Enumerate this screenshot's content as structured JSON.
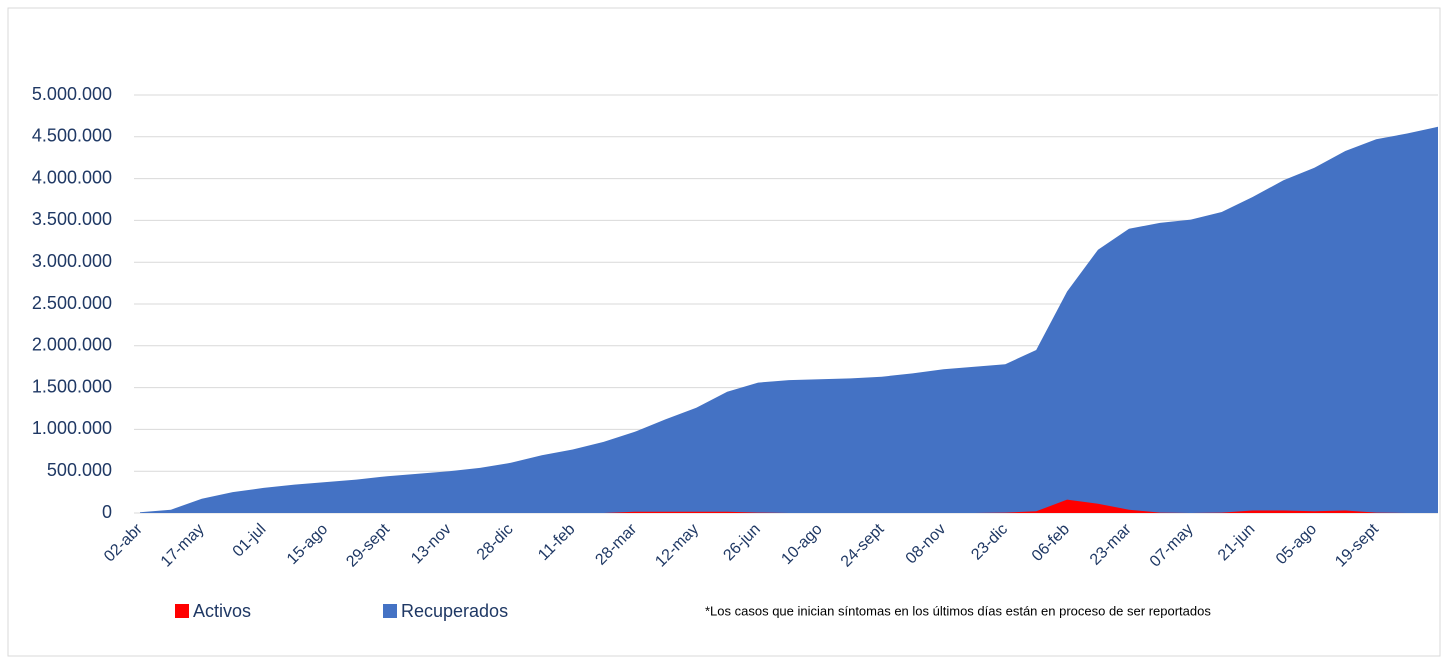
{
  "chart_data": {
    "type": "area",
    "categories": [
      "02-abr",
      null,
      "17-may",
      null,
      "01-jul",
      null,
      "15-ago",
      null,
      "29-sept",
      null,
      "13-nov",
      null,
      "28-dic",
      null,
      "11-feb",
      null,
      "28-mar",
      null,
      "12-may",
      null,
      "26-jun",
      null,
      "10-ago",
      null,
      "24-sept",
      null,
      "08-nov",
      null,
      "23-dic",
      null,
      "06-feb",
      null,
      "23-mar",
      null,
      "07-may",
      null,
      "21-jun",
      null,
      "05-ago",
      null,
      "19-sept",
      null,
      null
    ],
    "series": [
      {
        "name": "Recuperados",
        "color": "#4472c4",
        "values": [
          10000,
          40000,
          170000,
          250000,
          300000,
          340000,
          370000,
          400000,
          440000,
          470000,
          500000,
          540000,
          600000,
          690000,
          760000,
          850000,
          970000,
          1120000,
          1260000,
          1450000,
          1560000,
          1590000,
          1600000,
          1610000,
          1630000,
          1670000,
          1720000,
          1750000,
          1780000,
          1950000,
          2650000,
          3150000,
          3400000,
          3470000,
          3510000,
          3600000,
          3780000,
          3980000,
          4130000,
          4330000,
          4470000,
          4540000,
          4620000
        ]
      },
      {
        "name": "Activos",
        "color": "#ff0000",
        "values": [
          0,
          0,
          0,
          0,
          0,
          0,
          0,
          0,
          0,
          0,
          0,
          0,
          0,
          0,
          0,
          0,
          15000,
          15000,
          15000,
          15000,
          5000,
          0,
          0,
          0,
          0,
          0,
          0,
          0,
          5000,
          20000,
          160000,
          110000,
          40000,
          5000,
          0,
          5000,
          30000,
          30000,
          20000,
          30000,
          5000,
          0,
          0
        ]
      }
    ],
    "legend_order": [
      "Activos",
      "Recuperados"
    ],
    "note": "*Los casos que inician síntomas en los últimos días están en proceso de ser reportados",
    "ylim": [
      0,
      5000000
    ],
    "yticks": [
      0,
      {
        "value": 500000,
        "label": "500.000"
      },
      {
        "value": 1000000,
        "label": "1.000.000"
      },
      {
        "value": 1500000,
        "label": "1.500.000"
      },
      {
        "value": 2000000,
        "label": "2.000.000"
      },
      {
        "value": 2500000,
        "label": "2.500.000"
      },
      {
        "value": 3000000,
        "label": "3.000.000"
      },
      {
        "value": 3500000,
        "label": "3.500.000"
      },
      {
        "value": 4000000,
        "label": "4.000.000"
      },
      {
        "value": 4500000,
        "label": "4.500.000"
      },
      {
        "value": 5000000,
        "label": "5.000.000"
      }
    ],
    "grid": true
  }
}
